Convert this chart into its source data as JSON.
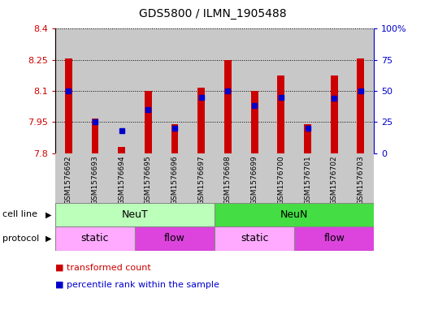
{
  "title": "GDS5800 / ILMN_1905488",
  "samples": [
    "GSM1576692",
    "GSM1576693",
    "GSM1576694",
    "GSM1576695",
    "GSM1576696",
    "GSM1576697",
    "GSM1576698",
    "GSM1576699",
    "GSM1576700",
    "GSM1576701",
    "GSM1576702",
    "GSM1576703"
  ],
  "transformed_count": [
    8.255,
    7.965,
    7.83,
    8.1,
    7.94,
    8.115,
    8.25,
    8.1,
    8.175,
    7.94,
    8.175,
    8.255
  ],
  "percentile_rank": [
    50,
    25,
    18,
    35,
    20,
    45,
    50,
    38,
    45,
    20,
    44,
    50
  ],
  "ymin": 7.8,
  "ymax": 8.4,
  "yticks": [
    7.8,
    7.95,
    8.1,
    8.25,
    8.4
  ],
  "pct_ticks": [
    0,
    25,
    50,
    75,
    100
  ],
  "bar_color": "#cc0000",
  "dot_color": "#0000cc",
  "col_bg_color": "#c8c8c8",
  "cell_line_neut_color": "#bbffbb",
  "cell_line_neun_color": "#44dd44",
  "protocol_static_color": "#ffaaff",
  "protocol_flow_color": "#dd44dd",
  "protocol_groups": [
    {
      "label": "static",
      "start": 0,
      "end": 3
    },
    {
      "label": "flow",
      "start": 3,
      "end": 6
    },
    {
      "label": "static",
      "start": 6,
      "end": 9
    },
    {
      "label": "flow",
      "start": 9,
      "end": 12
    }
  ],
  "legend_items": [
    {
      "label": "transformed count",
      "color": "#cc0000"
    },
    {
      "label": "percentile rank within the sample",
      "color": "#0000cc"
    }
  ],
  "left_axis_color": "#cc0000",
  "right_axis_color": "#0000cc"
}
